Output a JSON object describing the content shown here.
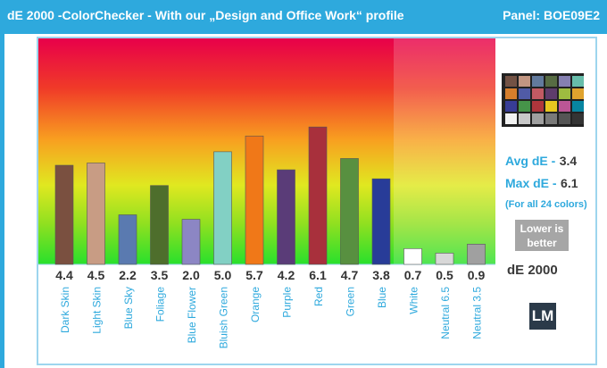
{
  "header": {
    "title": "dE 2000 -ColorChecker - With our „Design and Office Work“ profile",
    "panel": "Panel: BOE09E2"
  },
  "stats": {
    "avg_label": "Avg dE -",
    "avg_value": "3.4",
    "max_label": "Max dE -",
    "max_value": "6.1",
    "note": "(For all 24 colors)",
    "lower_line1": "Lower is",
    "lower_line2": "better",
    "de_label": "dE 2000"
  },
  "logo": {
    "text": "LM"
  },
  "checker_colors": [
    "#735244",
    "#c29682",
    "#627a9d",
    "#576c43",
    "#8580b1",
    "#67bdaa",
    "#d67e2c",
    "#505ba6",
    "#c15a63",
    "#5e3c6c",
    "#9dbc40",
    "#e0a32e",
    "#383d96",
    "#469449",
    "#af363c",
    "#e7c71f",
    "#bb5695",
    "#0885a1",
    "#f3f3f2",
    "#c8c8c8",
    "#a0a0a0",
    "#7a7a79",
    "#555555",
    "#343434"
  ],
  "chart_data": {
    "type": "bar",
    "title": "dE 2000 -ColorChecker - With our „Design and Office Work“ profile",
    "xlabel": "",
    "ylabel": "",
    "ylim": [
      0,
      10
    ],
    "yticks": [
      "1.0",
      "2.0",
      "3.0",
      "4.0",
      "5.0",
      "6.0",
      "7.0",
      "8.0",
      "9.0"
    ],
    "grid": false,
    "categories": [
      "Dark Skin",
      "Light Skin",
      "Blue Sky",
      "Foliage",
      "Blue Flower",
      "Bluish Green",
      "Orange",
      "Purple",
      "Red",
      "Green",
      "Blue",
      "White",
      "Neutral 6.5",
      "Neutral 3.5"
    ],
    "values": [
      4.4,
      4.5,
      2.2,
      3.5,
      2.0,
      5.0,
      5.7,
      4.2,
      6.1,
      4.7,
      3.8,
      0.7,
      0.5,
      0.9
    ],
    "value_labels": [
      "4.4",
      "4.5",
      "2.2",
      "3.5",
      "2.0",
      "5.0",
      "5.7",
      "4.2",
      "6.1",
      "4.7",
      "3.8",
      "0.7",
      "0.5",
      "0.9"
    ],
    "colors": [
      "#7a5040",
      "#c89c84",
      "#5a7ab0",
      "#4e6e2c",
      "#8c86c4",
      "#82d0c4",
      "#f07818",
      "#5a3c78",
      "#a8303c",
      "#589040",
      "#283c98",
      "#ffffff",
      "#d8d8d8",
      "#a0a0a0"
    ]
  }
}
